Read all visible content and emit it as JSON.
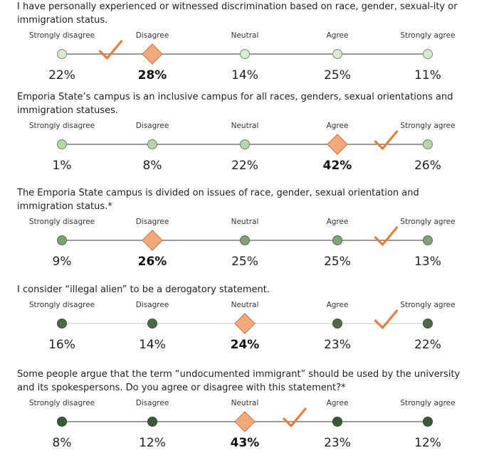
{
  "scale_labels": [
    "Strongly disagree",
    "Disagree",
    "Neutral",
    "Agree",
    "Strongly agree"
  ],
  "colors": {
    "highlight": "#f2a97a",
    "highlight_stroke": "#c8764b",
    "check": "#e57f3f"
  },
  "questions": [
    {
      "text": "I have personally experienced or witnessed discrimination based on race, gender, sexual-ity or immigration status.",
      "percents": [
        "22%",
        "28%",
        "14%",
        "25%",
        "11%"
      ],
      "highlight_index": 1,
      "check_after_index": 0,
      "dot_color": "#d9e8d2",
      "dot_stroke": "#7b8f73",
      "line_color": "#5c5c5c"
    },
    {
      "text": "Emporia State’s campus is an inclusive campus for all races, genders, sexual orientations and immigration statuses.",
      "percents": [
        "1%",
        "8%",
        "22%",
        "42%",
        "26%"
      ],
      "highlight_index": 3,
      "check_after_index": 3,
      "dot_color": "#b9d3ab",
      "dot_stroke": "#6d8863",
      "line_color": "#5c5c5c"
    },
    {
      "text": "The Emporia State campus is divided on issues of race, gender, sexual orientation and immigration status.*",
      "percents": [
        "9%",
        "26%",
        "25%",
        "25%",
        "13%"
      ],
      "highlight_index": 1,
      "check_after_index": 3,
      "dot_color": "#7fa175",
      "dot_stroke": "#56704d",
      "line_color": "#5c5c5c"
    },
    {
      "text": "I consider “illegal alien” to be a derogatory statement.",
      "percents": [
        "16%",
        "14%",
        "24%",
        "23%",
        "22%"
      ],
      "highlight_index": 2,
      "check_after_index": 3,
      "dot_color": "#4d6a47",
      "dot_stroke": "#3a5236",
      "line_color": "#cfcfcf"
    },
    {
      "text": "Some people argue that the term “undocumented immigrant” should be used by the university and its spokespersons. Do you agree or disagree with this statement?*",
      "percents": [
        "8%",
        "12%",
        "43%",
        "23%",
        "12%"
      ],
      "highlight_index": 2,
      "check_after_index": 2,
      "dot_color": "#3b5a38",
      "dot_stroke": "#2c432a",
      "line_color": "#5c5c5c"
    }
  ]
}
